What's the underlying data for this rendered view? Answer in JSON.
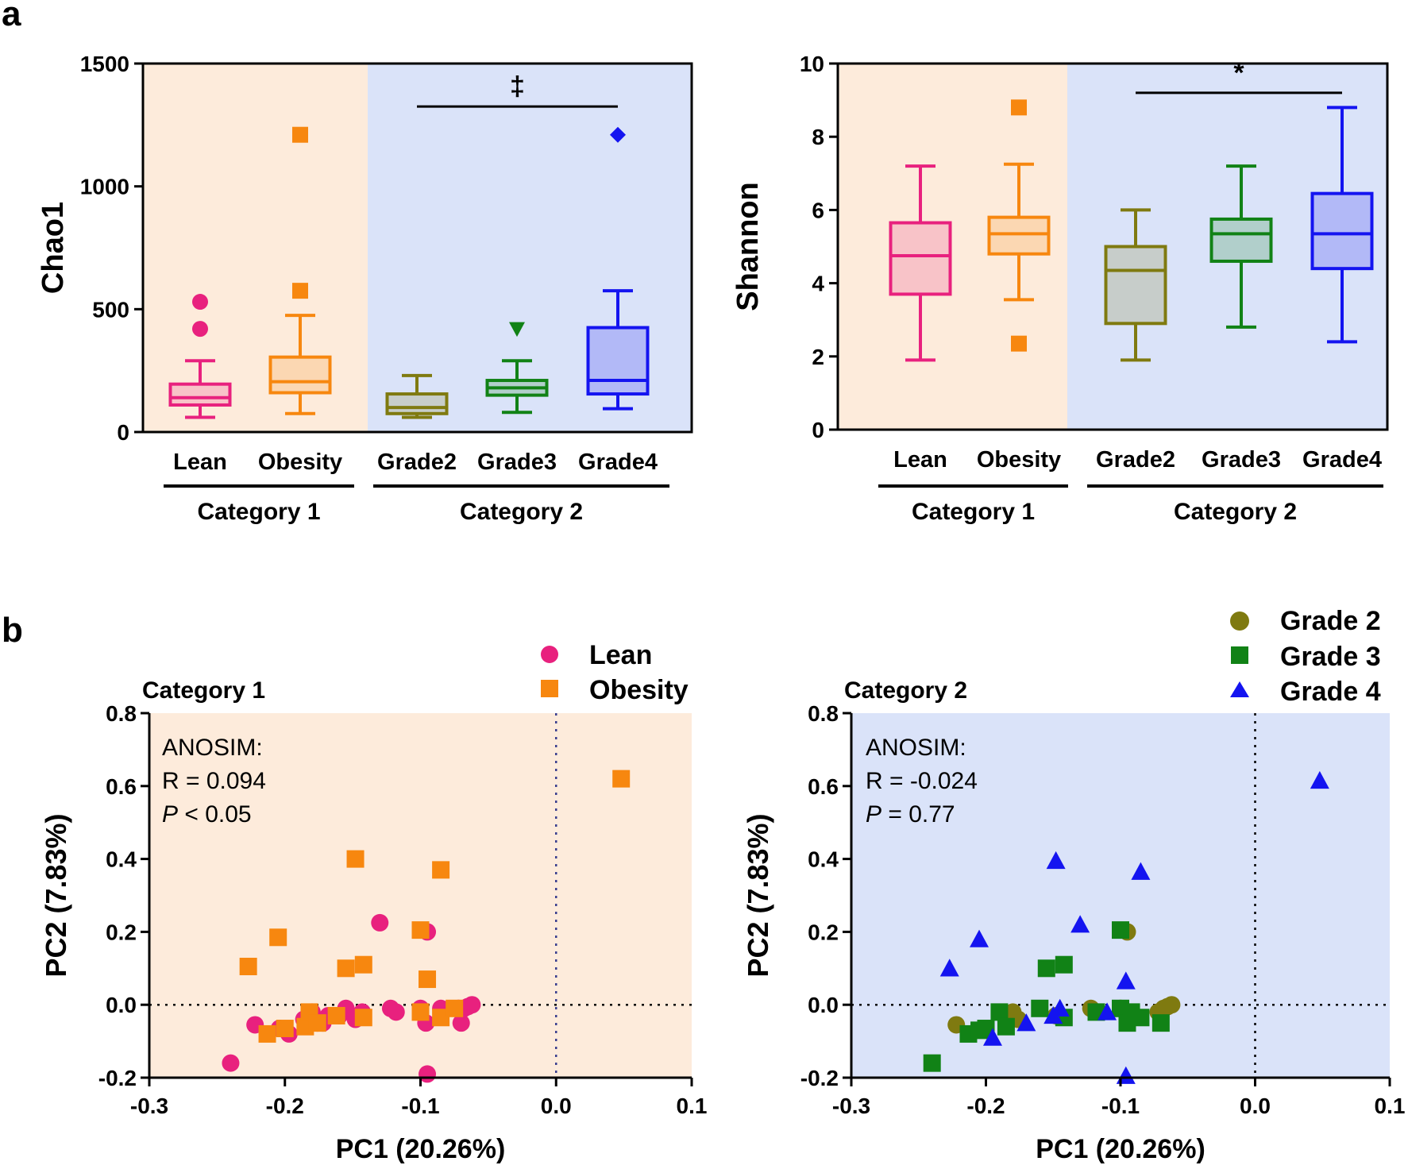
{
  "panel_a_label": "a",
  "panel_b_label": "b",
  "colors": {
    "lean": "#e8217e",
    "obesity": "#f7870f",
    "grade2": "#7f7a10",
    "grade3": "#118216",
    "grade4": "#1414f0",
    "bg_cat1": "#fdebdb",
    "bg_cat2": "#dae3f9"
  },
  "chart_data": [
    {
      "id": "chao1",
      "type": "box",
      "ylabel": "Chao1",
      "ylim": [
        0,
        1500
      ],
      "yticks": [
        0,
        500,
        1000,
        1500
      ],
      "categories": [
        "Lean",
        "Obesity",
        "Grade2",
        "Grade3",
        "Grade4"
      ],
      "groups": [
        {
          "label": "Category 1",
          "members": [
            "Lean",
            "Obesity"
          ]
        },
        {
          "label": "Category 2",
          "members": [
            "Grade2",
            "Grade3",
            "Grade4"
          ]
        }
      ],
      "boxes": [
        {
          "name": "Lean",
          "color_key": "lean",
          "min": 60,
          "q1": 110,
          "median": 140,
          "q3": 195,
          "max": 290,
          "outliers": [
            530,
            420
          ],
          "marker": "circle"
        },
        {
          "name": "Obesity",
          "color_key": "obesity",
          "min": 75,
          "q1": 160,
          "median": 205,
          "q3": 305,
          "max": 475,
          "outliers": [
            1210,
            575
          ],
          "marker": "square"
        },
        {
          "name": "Grade2",
          "color_key": "grade2",
          "min": 60,
          "q1": 75,
          "median": 100,
          "q3": 155,
          "max": 230,
          "outliers": [],
          "marker": "circle"
        },
        {
          "name": "Grade3",
          "color_key": "grade3",
          "min": 80,
          "q1": 150,
          "median": 180,
          "q3": 210,
          "max": 290,
          "outliers": [
            420
          ],
          "marker": "triangle-down"
        },
        {
          "name": "Grade4",
          "color_key": "grade4",
          "min": 95,
          "q1": 155,
          "median": 210,
          "q3": 425,
          "max": 575,
          "outliers": [
            1210
          ],
          "marker": "diamond"
        }
      ],
      "significance": {
        "from": "Grade2",
        "to": "Grade4",
        "y": 1325,
        "symbol": "‡"
      }
    },
    {
      "id": "shannon",
      "type": "box",
      "ylabel": "Shannon",
      "ylim": [
        0,
        10
      ],
      "yticks": [
        0,
        2,
        4,
        6,
        8,
        10
      ],
      "categories": [
        "Lean",
        "Obesity",
        "Grade2",
        "Grade3",
        "Grade4"
      ],
      "groups": [
        {
          "label": "Category 1",
          "members": [
            "Lean",
            "Obesity"
          ]
        },
        {
          "label": "Category 2",
          "members": [
            "Grade2",
            "Grade3",
            "Grade4"
          ]
        }
      ],
      "boxes": [
        {
          "name": "Lean",
          "color_key": "lean",
          "min": 1.9,
          "q1": 3.7,
          "median": 4.75,
          "q3": 5.65,
          "max": 7.2,
          "outliers": [],
          "marker": "circle"
        },
        {
          "name": "Obesity",
          "color_key": "obesity",
          "min": 3.55,
          "q1": 4.8,
          "median": 5.35,
          "q3": 5.8,
          "max": 7.25,
          "outliers": [
            8.8,
            2.35
          ],
          "marker": "square"
        },
        {
          "name": "Grade2",
          "color_key": "grade2",
          "min": 1.9,
          "q1": 2.9,
          "median": 4.35,
          "q3": 5.0,
          "max": 6.0,
          "outliers": [],
          "marker": "circle"
        },
        {
          "name": "Grade3",
          "color_key": "grade3",
          "min": 2.8,
          "q1": 4.6,
          "median": 5.35,
          "q3": 5.75,
          "max": 7.2,
          "outliers": [],
          "marker": "triangle-down"
        },
        {
          "name": "Grade4",
          "color_key": "grade4",
          "min": 2.4,
          "q1": 4.4,
          "median": 5.35,
          "q3": 6.45,
          "max": 8.8,
          "outliers": [],
          "marker": "diamond"
        }
      ],
      "significance": {
        "from": "Grade2",
        "to": "Grade4",
        "y": 9.2,
        "symbol": "*"
      }
    },
    {
      "id": "pcoa_cat1",
      "type": "scatter",
      "title": "Category 1",
      "xlabel": "PC1 (20.26%)",
      "ylabel": "PC2 (7.83%)",
      "xlim": [
        -0.3,
        0.1
      ],
      "ylim": [
        -0.2,
        0.8
      ],
      "xticks": [
        -0.3,
        -0.2,
        -0.1,
        0.0,
        0.1
      ],
      "yticks": [
        -0.2,
        0.0,
        0.2,
        0.4,
        0.6,
        0.8
      ],
      "xtick_labels": [
        "-0.3",
        "-0.2",
        "-0.1",
        "0.0",
        "0.1"
      ],
      "ytick_labels": [
        "-0.2",
        "0.0",
        "0.2",
        "0.4",
        "0.6",
        "0.8"
      ],
      "reference_lines": {
        "x": 0.0,
        "y": 0.0
      },
      "annotation": {
        "line1": "ANOSIM:",
        "line2": "R = 0.094",
        "p_symbol": "P",
        "p_rest": " < 0.05"
      },
      "series": [
        {
          "name": "Lean",
          "color_key": "lean",
          "marker": "circle",
          "points": [
            [
              -0.24,
              -0.16
            ],
            [
              -0.222,
              -0.055
            ],
            [
              -0.204,
              -0.065
            ],
            [
              -0.197,
              -0.08
            ],
            [
              -0.186,
              -0.04
            ],
            [
              -0.18,
              -0.02
            ],
            [
              -0.176,
              -0.05
            ],
            [
              -0.172,
              -0.05
            ],
            [
              -0.168,
              -0.03
            ],
            [
              -0.16,
              -0.03
            ],
            [
              -0.155,
              -0.01
            ],
            [
              -0.148,
              -0.04
            ],
            [
              -0.143,
              -0.02
            ],
            [
              -0.13,
              0.225
            ],
            [
              -0.122,
              -0.01
            ],
            [
              -0.118,
              -0.02
            ],
            [
              -0.1,
              -0.01
            ],
            [
              -0.096,
              -0.05
            ],
            [
              -0.095,
              0.2
            ],
            [
              -0.095,
              -0.19
            ],
            [
              -0.085,
              -0.01
            ],
            [
              -0.072,
              -0.01
            ],
            [
              -0.07,
              -0.05
            ],
            [
              -0.068,
              -0.01
            ],
            [
              -0.065,
              -0.005
            ],
            [
              -0.062,
              0.0
            ]
          ]
        },
        {
          "name": "Obesity",
          "color_key": "obesity",
          "marker": "square",
          "points": [
            [
              0.048,
              0.62
            ],
            [
              -0.148,
              0.4
            ],
            [
              -0.085,
              0.37
            ],
            [
              -0.205,
              0.185
            ],
            [
              -0.227,
              0.105
            ],
            [
              -0.1,
              0.205
            ],
            [
              -0.155,
              0.1
            ],
            [
              -0.142,
              0.11
            ],
            [
              -0.095,
              0.07
            ],
            [
              -0.213,
              -0.08
            ],
            [
              -0.2,
              -0.065
            ],
            [
              -0.185,
              -0.06
            ],
            [
              -0.182,
              -0.02
            ],
            [
              -0.176,
              -0.05
            ],
            [
              -0.162,
              -0.03
            ],
            [
              -0.142,
              -0.035
            ],
            [
              -0.1,
              -0.02
            ],
            [
              -0.085,
              -0.035
            ],
            [
              -0.075,
              -0.01
            ]
          ]
        }
      ]
    },
    {
      "id": "pcoa_cat2",
      "type": "scatter",
      "title": "Category 2",
      "xlabel": "PC1 (20.26%)",
      "ylabel": "PC2 (7.83%)",
      "xlim": [
        -0.3,
        0.1
      ],
      "ylim": [
        -0.2,
        0.8
      ],
      "xticks": [
        -0.3,
        -0.2,
        -0.1,
        0.0,
        0.1
      ],
      "yticks": [
        -0.2,
        0.0,
        0.2,
        0.4,
        0.6,
        0.8
      ],
      "xtick_labels": [
        "-0.3",
        "-0.2",
        "-0.1",
        "0.0",
        "0.1"
      ],
      "ytick_labels": [
        "-0.2",
        "0.0",
        "0.2",
        "0.4",
        "0.6",
        "0.8"
      ],
      "reference_lines": {
        "x": 0.0,
        "y": 0.0
      },
      "annotation": {
        "line1": "ANOSIM:",
        "line2": "R = -0.024",
        "p_symbol": "P",
        "p_rest": " = 0.77"
      },
      "series": [
        {
          "name": "Grade 2",
          "color_key": "grade2",
          "marker": "circle",
          "points": [
            [
              -0.222,
              -0.055
            ],
            [
              -0.18,
              -0.02
            ],
            [
              -0.176,
              -0.04
            ],
            [
              -0.148,
              -0.03
            ],
            [
              -0.122,
              -0.01
            ],
            [
              -0.1,
              -0.01
            ],
            [
              -0.095,
              0.2
            ],
            [
              -0.094,
              -0.02
            ],
            [
              -0.072,
              -0.02
            ],
            [
              -0.068,
              -0.01
            ],
            [
              -0.065,
              -0.005
            ],
            [
              -0.062,
              0.0
            ]
          ]
        },
        {
          "name": "Grade 3",
          "color_key": "grade3",
          "marker": "square",
          "points": [
            [
              -0.24,
              -0.16
            ],
            [
              -0.213,
              -0.08
            ],
            [
              -0.205,
              -0.07
            ],
            [
              -0.2,
              -0.065
            ],
            [
              -0.19,
              -0.02
            ],
            [
              -0.185,
              -0.06
            ],
            [
              -0.16,
              -0.01
            ],
            [
              -0.155,
              0.1
            ],
            [
              -0.142,
              0.11
            ],
            [
              -0.142,
              -0.035
            ],
            [
              -0.118,
              -0.02
            ],
            [
              -0.1,
              0.205
            ],
            [
              -0.1,
              -0.01
            ],
            [
              -0.095,
              -0.05
            ],
            [
              -0.092,
              -0.02
            ],
            [
              -0.085,
              -0.035
            ],
            [
              -0.07,
              -0.05
            ]
          ]
        },
        {
          "name": "Grade 4",
          "color_key": "grade4",
          "marker": "triangle",
          "points": [
            [
              0.048,
              0.615
            ],
            [
              -0.148,
              0.395
            ],
            [
              -0.085,
              0.365
            ],
            [
              -0.13,
              0.22
            ],
            [
              -0.205,
              0.18
            ],
            [
              -0.227,
              0.1
            ],
            [
              -0.096,
              0.065
            ],
            [
              -0.195,
              -0.09
            ],
            [
              -0.17,
              -0.05
            ],
            [
              -0.15,
              -0.03
            ],
            [
              -0.145,
              -0.01
            ],
            [
              -0.11,
              -0.02
            ],
            [
              -0.096,
              -0.195
            ]
          ]
        }
      ]
    }
  ]
}
